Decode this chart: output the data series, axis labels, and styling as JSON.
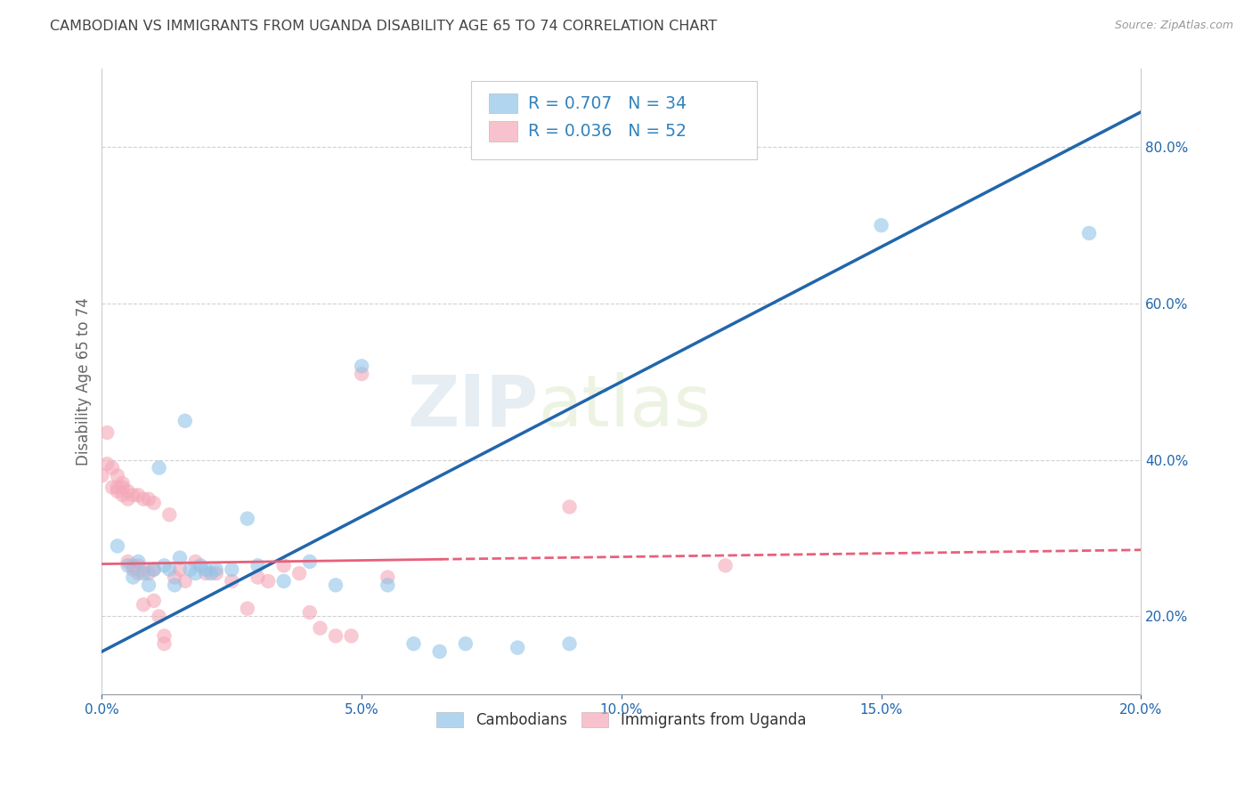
{
  "title": "CAMBODIAN VS IMMIGRANTS FROM UGANDA DISABILITY AGE 65 TO 74 CORRELATION CHART",
  "source": "Source: ZipAtlas.com",
  "ylabel": "Disability Age 65 to 74",
  "watermark": "ZIPatlas",
  "xlim": [
    0.0,
    0.2
  ],
  "ylim": [
    0.1,
    0.9
  ],
  "xticks": [
    0.0,
    0.05,
    0.1,
    0.15,
    0.2
  ],
  "right_yticks": [
    0.2,
    0.4,
    0.6,
    0.8
  ],
  "cambodian_color": "#91c4e8",
  "uganda_color": "#f4a8b8",
  "cambodian_R": 0.707,
  "cambodian_N": 34,
  "uganda_R": 0.036,
  "uganda_N": 52,
  "legend_color": "#3182bd",
  "cambodian_scatter": [
    [
      0.003,
      0.29
    ],
    [
      0.005,
      0.265
    ],
    [
      0.006,
      0.25
    ],
    [
      0.007,
      0.27
    ],
    [
      0.008,
      0.255
    ],
    [
      0.009,
      0.24
    ],
    [
      0.01,
      0.26
    ],
    [
      0.011,
      0.39
    ],
    [
      0.012,
      0.265
    ],
    [
      0.013,
      0.26
    ],
    [
      0.014,
      0.24
    ],
    [
      0.015,
      0.275
    ],
    [
      0.016,
      0.45
    ],
    [
      0.017,
      0.26
    ],
    [
      0.018,
      0.255
    ],
    [
      0.019,
      0.265
    ],
    [
      0.02,
      0.26
    ],
    [
      0.021,
      0.255
    ],
    [
      0.022,
      0.26
    ],
    [
      0.025,
      0.26
    ],
    [
      0.028,
      0.325
    ],
    [
      0.03,
      0.265
    ],
    [
      0.035,
      0.245
    ],
    [
      0.04,
      0.27
    ],
    [
      0.045,
      0.24
    ],
    [
      0.05,
      0.52
    ],
    [
      0.055,
      0.24
    ],
    [
      0.06,
      0.165
    ],
    [
      0.065,
      0.155
    ],
    [
      0.07,
      0.165
    ],
    [
      0.08,
      0.16
    ],
    [
      0.09,
      0.165
    ],
    [
      0.15,
      0.7
    ],
    [
      0.19,
      0.69
    ]
  ],
  "uganda_scatter": [
    [
      0.0,
      0.38
    ],
    [
      0.001,
      0.435
    ],
    [
      0.001,
      0.395
    ],
    [
      0.002,
      0.365
    ],
    [
      0.002,
      0.39
    ],
    [
      0.003,
      0.38
    ],
    [
      0.003,
      0.365
    ],
    [
      0.003,
      0.36
    ],
    [
      0.004,
      0.365
    ],
    [
      0.004,
      0.355
    ],
    [
      0.004,
      0.37
    ],
    [
      0.005,
      0.36
    ],
    [
      0.005,
      0.35
    ],
    [
      0.005,
      0.27
    ],
    [
      0.006,
      0.355
    ],
    [
      0.006,
      0.265
    ],
    [
      0.006,
      0.26
    ],
    [
      0.007,
      0.355
    ],
    [
      0.007,
      0.255
    ],
    [
      0.007,
      0.265
    ],
    [
      0.008,
      0.35
    ],
    [
      0.008,
      0.26
    ],
    [
      0.008,
      0.215
    ],
    [
      0.009,
      0.35
    ],
    [
      0.009,
      0.255
    ],
    [
      0.01,
      0.345
    ],
    [
      0.01,
      0.26
    ],
    [
      0.01,
      0.22
    ],
    [
      0.011,
      0.2
    ],
    [
      0.012,
      0.175
    ],
    [
      0.012,
      0.165
    ],
    [
      0.013,
      0.33
    ],
    [
      0.014,
      0.25
    ],
    [
      0.015,
      0.26
    ],
    [
      0.016,
      0.245
    ],
    [
      0.018,
      0.27
    ],
    [
      0.02,
      0.255
    ],
    [
      0.022,
      0.255
    ],
    [
      0.025,
      0.245
    ],
    [
      0.028,
      0.21
    ],
    [
      0.03,
      0.25
    ],
    [
      0.032,
      0.245
    ],
    [
      0.035,
      0.265
    ],
    [
      0.038,
      0.255
    ],
    [
      0.04,
      0.205
    ],
    [
      0.042,
      0.185
    ],
    [
      0.045,
      0.175
    ],
    [
      0.048,
      0.175
    ],
    [
      0.05,
      0.51
    ],
    [
      0.055,
      0.25
    ],
    [
      0.09,
      0.34
    ],
    [
      0.12,
      0.265
    ]
  ],
  "blue_line_color": "#2166ac",
  "pink_line_color": "#e8607a",
  "background_color": "#ffffff",
  "grid_color": "#cccccc",
  "title_color": "#444444",
  "axis_label_color": "#666666",
  "tick_label_color": "#2166ac"
}
